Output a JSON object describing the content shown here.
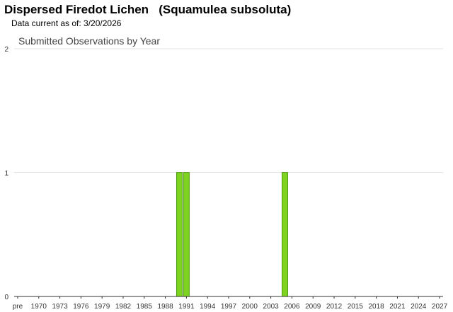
{
  "header": {
    "title": "Dispersed Firedot Lichen   (Squamulea subsoluta)",
    "data_current": "Data current as of: 3/20/2026"
  },
  "chart_data": {
    "type": "bar",
    "title": "Submitted Observations by Year",
    "xlabel": "",
    "ylabel": "",
    "ylim": [
      0,
      2
    ],
    "y_ticks": [
      0,
      1,
      2
    ],
    "grid": true,
    "x_tick_labels": [
      "pre",
      "1970",
      "1973",
      "1976",
      "1979",
      "1982",
      "1985",
      "1988",
      "1991",
      "1994",
      "1997",
      "2000",
      "2003",
      "2006",
      "2009",
      "2012",
      "2015",
      "2018",
      "2021",
      "2024",
      "2027"
    ],
    "first_year": 1967,
    "last_year": 2027,
    "bars": [
      {
        "year": 1990,
        "value": 1
      },
      {
        "year": 1991,
        "value": 1
      },
      {
        "year": 2005,
        "value": 1
      }
    ],
    "bar_color": "#7ed321",
    "bar_edge_color": "#4a9a0a"
  }
}
